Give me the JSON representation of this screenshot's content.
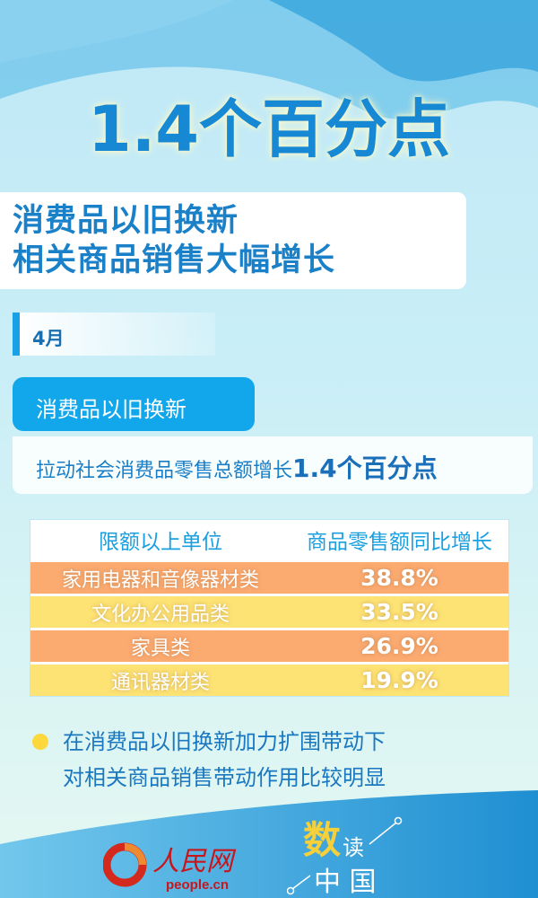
{
  "headline": "1.4个百分点",
  "subtitle": {
    "line1": "消费品以旧换新",
    "line2": "相关商品销售大幅增长"
  },
  "month": "4月",
  "tag": "消费品以旧换新",
  "statement": {
    "text": "拉动社会消费品零售总额增长",
    "highlight": "1.4个百分点"
  },
  "table": {
    "headers": [
      "限额以上单位",
      "商品零售额同比增长"
    ],
    "rows": [
      {
        "category": "家用电器和音像器材类",
        "growth": "38.8%",
        "color": "#fbaa70"
      },
      {
        "category": "文化办公用品类",
        "growth": "33.5%",
        "color": "#fde274"
      },
      {
        "category": "家具类",
        "growth": "26.9%",
        "color": "#fbaa70"
      },
      {
        "category": "通讯器材类",
        "growth": "19.9%",
        "color": "#fde274"
      }
    ]
  },
  "note": {
    "line1": "在消费品以旧换新加力扩围带动下",
    "line2": "对相关商品销售带动作用比较明显"
  },
  "footer": {
    "logo_text": "人民网",
    "logo_url_text": "people.cn",
    "badge": [
      "数",
      "读",
      "中",
      "国"
    ]
  },
  "colors": {
    "primary": "#1789d4",
    "accent_yellow": "#fdd83d",
    "row_orange": "#fbaa70",
    "row_yellow": "#fde274"
  }
}
